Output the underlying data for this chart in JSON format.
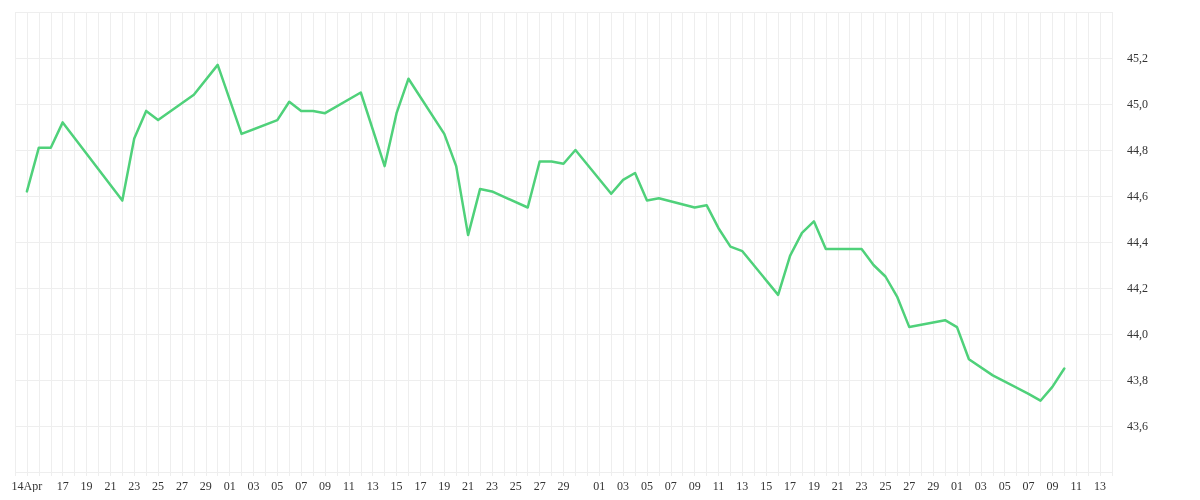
{
  "chart_data": {
    "type": "line",
    "x": [
      "--04-14",
      "--04-15",
      "--04-16",
      "--04-17",
      "--04-22",
      "--04-23",
      "--04-24",
      "--04-25",
      "--04-28",
      "--04-30",
      "--05-02",
      "--05-05",
      "--05-06",
      "--05-07",
      "--05-08",
      "--05-09",
      "--05-12",
      "--05-14",
      "--05-15",
      "--05-16",
      "--05-19",
      "--05-20",
      "--05-21",
      "--05-22",
      "--05-23",
      "--05-26",
      "--05-27",
      "--05-28",
      "--05-29",
      "--05-30",
      "--06-02",
      "--06-03",
      "--06-04",
      "--06-05",
      "--06-06",
      "--06-09",
      "--06-10",
      "--06-11",
      "--06-12",
      "--06-13",
      "--06-16",
      "--06-17",
      "--06-18",
      "--06-19",
      "--06-20",
      "--06-23",
      "--06-24",
      "--06-25",
      "--06-26",
      "--06-27",
      "--06-30",
      "--07-01",
      "--07-02",
      "--07-04",
      "--07-07",
      "--07-08",
      "--07-09",
      "--07-10"
    ],
    "series": [
      {
        "color": "#4fd17a",
        "values": [
          44.62,
          44.81,
          44.81,
          44.92,
          44.58,
          44.85,
          44.97,
          44.93,
          45.04,
          45.17,
          44.87,
          44.93,
          45.01,
          44.97,
          44.97,
          44.96,
          45.05,
          44.73,
          44.96,
          45.11,
          44.87,
          44.73,
          44.43,
          44.63,
          44.62,
          44.55,
          44.75,
          44.75,
          44.74,
          44.8,
          44.61,
          44.67,
          44.7,
          44.58,
          44.59,
          44.55,
          44.56,
          44.46,
          44.38,
          44.36,
          44.17,
          44.34,
          44.44,
          44.49,
          44.37,
          44.37,
          44.3,
          44.25,
          44.16,
          44.03,
          44.06,
          44.03,
          43.89,
          43.82,
          43.74,
          43.71,
          43.77,
          43.85
        ]
      }
    ],
    "xlim": [
      "--04-13",
      "--07-14"
    ],
    "xticks": [
      {
        "value": "--04-13",
        "label": null
      },
      {
        "value": "--04-14",
        "label": "14Apr"
      },
      {
        "value": "--04-15",
        "label": null
      },
      {
        "value": "--04-16",
        "label": null
      },
      {
        "value": "--04-17",
        "label": "17"
      },
      {
        "value": "--04-18",
        "label": null
      },
      {
        "value": "--04-19",
        "label": "19"
      },
      {
        "value": "--04-20",
        "label": null
      },
      {
        "value": "--04-21",
        "label": "21"
      },
      {
        "value": "--04-22",
        "label": null
      },
      {
        "value": "--04-23",
        "label": "23"
      },
      {
        "value": "--04-24",
        "label": null
      },
      {
        "value": "--04-25",
        "label": "25"
      },
      {
        "value": "--04-26",
        "label": null
      },
      {
        "value": "--04-27",
        "label": "27"
      },
      {
        "value": "--04-28",
        "label": null
      },
      {
        "value": "--04-29",
        "label": "29"
      },
      {
        "value": "--04-30",
        "label": null
      },
      {
        "value": "--05-01",
        "label": "01"
      },
      {
        "value": "--05-02",
        "label": null
      },
      {
        "value": "--05-03",
        "label": "03"
      },
      {
        "value": "--05-04",
        "label": null
      },
      {
        "value": "--05-05",
        "label": "05"
      },
      {
        "value": "--05-06",
        "label": null
      },
      {
        "value": "--05-07",
        "label": "07"
      },
      {
        "value": "--05-08",
        "label": null
      },
      {
        "value": "--05-09",
        "label": "09"
      },
      {
        "value": "--05-10",
        "label": null
      },
      {
        "value": "--05-11",
        "label": "11"
      },
      {
        "value": "--05-12",
        "label": null
      },
      {
        "value": "--05-13",
        "label": "13"
      },
      {
        "value": "--05-14",
        "label": null
      },
      {
        "value": "--05-15",
        "label": "15"
      },
      {
        "value": "--05-16",
        "label": null
      },
      {
        "value": "--05-17",
        "label": "17"
      },
      {
        "value": "--05-18",
        "label": null
      },
      {
        "value": "--05-19",
        "label": "19"
      },
      {
        "value": "--05-20",
        "label": null
      },
      {
        "value": "--05-21",
        "label": "21"
      },
      {
        "value": "--05-22",
        "label": null
      },
      {
        "value": "--05-23",
        "label": "23"
      },
      {
        "value": "--05-24",
        "label": null
      },
      {
        "value": "--05-25",
        "label": "25"
      },
      {
        "value": "--05-26",
        "label": null
      },
      {
        "value": "--05-27",
        "label": "27"
      },
      {
        "value": "--05-28",
        "label": null
      },
      {
        "value": "--05-29",
        "label": "29"
      },
      {
        "value": "--05-30",
        "label": null
      },
      {
        "value": "--05-31",
        "label": null
      },
      {
        "value": "--06-01",
        "label": "01"
      },
      {
        "value": "--06-02",
        "label": null
      },
      {
        "value": "--06-03",
        "label": "03"
      },
      {
        "value": "--06-04",
        "label": null
      },
      {
        "value": "--06-05",
        "label": "05"
      },
      {
        "value": "--06-06",
        "label": null
      },
      {
        "value": "--06-07",
        "label": "07"
      },
      {
        "value": "--06-08",
        "label": null
      },
      {
        "value": "--06-09",
        "label": "09"
      },
      {
        "value": "--06-10",
        "label": null
      },
      {
        "value": "--06-11",
        "label": "11"
      },
      {
        "value": "--06-12",
        "label": null
      },
      {
        "value": "--06-13",
        "label": "13"
      },
      {
        "value": "--06-14",
        "label": null
      },
      {
        "value": "--06-15",
        "label": "15"
      },
      {
        "value": "--06-16",
        "label": null
      },
      {
        "value": "--06-17",
        "label": "17"
      },
      {
        "value": "--06-18",
        "label": null
      },
      {
        "value": "--06-19",
        "label": "19"
      },
      {
        "value": "--06-20",
        "label": null
      },
      {
        "value": "--06-21",
        "label": "21"
      },
      {
        "value": "--06-22",
        "label": null
      },
      {
        "value": "--06-23",
        "label": "23"
      },
      {
        "value": "--06-24",
        "label": null
      },
      {
        "value": "--06-25",
        "label": "25"
      },
      {
        "value": "--06-26",
        "label": null
      },
      {
        "value": "--06-27",
        "label": "27"
      },
      {
        "value": "--06-28",
        "label": null
      },
      {
        "value": "--06-29",
        "label": "29"
      },
      {
        "value": "--06-30",
        "label": null
      },
      {
        "value": "--07-01",
        "label": "01"
      },
      {
        "value": "--07-02",
        "label": null
      },
      {
        "value": "--07-03",
        "label": "03"
      },
      {
        "value": "--07-04",
        "label": null
      },
      {
        "value": "--07-05",
        "label": "05"
      },
      {
        "value": "--07-06",
        "label": null
      },
      {
        "value": "--07-07",
        "label": "07"
      },
      {
        "value": "--07-08",
        "label": null
      },
      {
        "value": "--07-09",
        "label": "09"
      },
      {
        "value": "--07-10",
        "label": null
      },
      {
        "value": "--07-11",
        "label": "11"
      },
      {
        "value": "--07-12",
        "label": null
      },
      {
        "value": "--07-13",
        "label": "13"
      },
      {
        "value": "--07-14",
        "label": null
      }
    ],
    "ylim": [
      43.4,
      45.4
    ],
    "yticks": [
      {
        "value": 43.4,
        "label": null
      },
      {
        "value": 43.6,
        "label": "43,6"
      },
      {
        "value": 43.8,
        "label": "43,8"
      },
      {
        "value": 44.0,
        "label": "44,0"
      },
      {
        "value": 44.2,
        "label": "44,2"
      },
      {
        "value": 44.4,
        "label": "44,4"
      },
      {
        "value": 44.6,
        "label": "44,6"
      },
      {
        "value": 44.8,
        "label": "44,8"
      },
      {
        "value": 45.0,
        "label": "45,0"
      },
      {
        "value": 45.2,
        "label": "45,2"
      },
      {
        "value": 45.4,
        "label": null
      }
    ],
    "grid": true,
    "marker": "none",
    "line_style": "solid"
  }
}
